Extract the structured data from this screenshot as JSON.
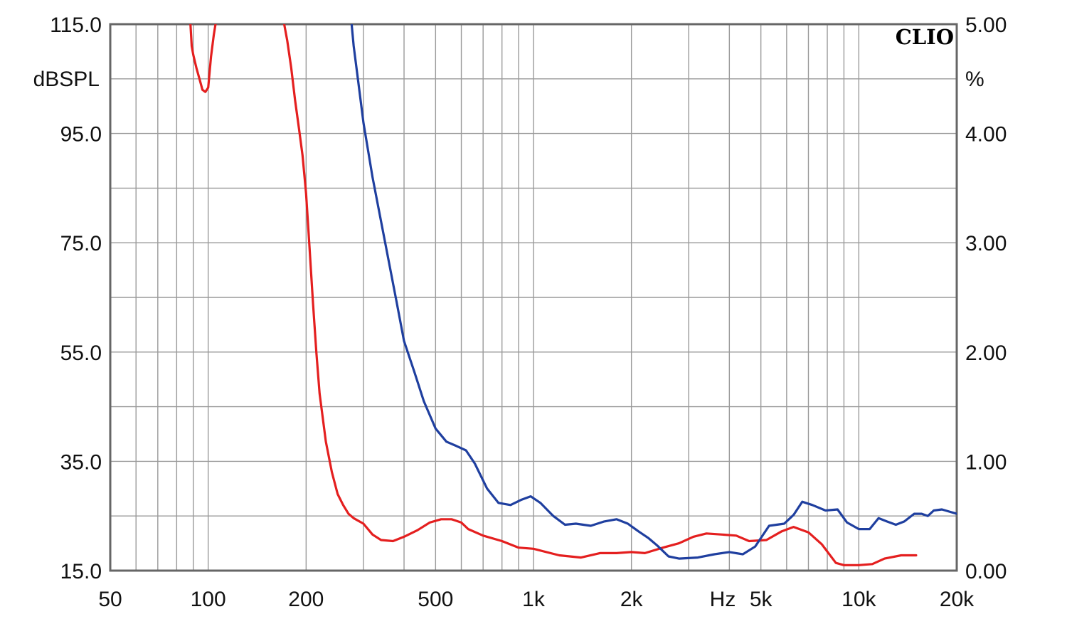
{
  "chart_data": {
    "type": "line",
    "x_scale": "log",
    "xlim": [
      50,
      20000
    ],
    "ylim_left": [
      15,
      115
    ],
    "ylim_right": [
      0,
      5
    ],
    "grid": true,
    "x_ticks": [
      {
        "v": 50,
        "label": "50"
      },
      {
        "v": 100,
        "label": "100"
      },
      {
        "v": 200,
        "label": "200"
      },
      {
        "v": 500,
        "label": "500"
      },
      {
        "v": 1000,
        "label": "1k"
      },
      {
        "v": 2000,
        "label": "2k"
      },
      {
        "v": 5000,
        "label": "5k"
      },
      {
        "v": 10000,
        "label": "10k"
      },
      {
        "v": 20000,
        "label": "20k"
      }
    ],
    "x_unit_label": "Hz",
    "y_left_ticks": [
      {
        "v": 115,
        "label": "115.0"
      },
      {
        "v": 95,
        "label": "95.0"
      },
      {
        "v": 75,
        "label": "75.0"
      },
      {
        "v": 55,
        "label": "55.0"
      },
      {
        "v": 35,
        "label": "35.0"
      },
      {
        "v": 15,
        "label": "15.0"
      }
    ],
    "y_left_unit": "dBSPL",
    "y_right_ticks": [
      {
        "v": 5,
        "label": "5.00"
      },
      {
        "v": 4,
        "label": "4.00"
      },
      {
        "v": 3,
        "label": "3.00"
      },
      {
        "v": 2,
        "label": "2.00"
      },
      {
        "v": 1,
        "label": "1.00"
      },
      {
        "v": 0,
        "label": "0.00"
      }
    ],
    "y_right_unit": "%",
    "brand": "CLIO",
    "series": [
      {
        "color": "#e41f1f",
        "axis": "right",
        "points": [
          [
            88,
            5.05
          ],
          [
            89,
            4.8
          ],
          [
            90,
            4.72
          ],
          [
            92,
            4.6
          ],
          [
            94,
            4.5
          ],
          [
            96,
            4.4
          ],
          [
            98,
            4.38
          ],
          [
            100,
            4.42
          ],
          [
            102,
            4.7
          ],
          [
            104,
            4.9
          ],
          [
            106,
            5.05
          ],
          [
            170,
            5.05
          ],
          [
            175,
            4.85
          ],
          [
            180,
            4.6
          ],
          [
            185,
            4.3
          ],
          [
            190,
            4.05
          ],
          [
            195,
            3.8
          ],
          [
            200,
            3.45
          ],
          [
            205,
            2.95
          ],
          [
            210,
            2.45
          ],
          [
            215,
            2.0
          ],
          [
            220,
            1.62
          ],
          [
            230,
            1.18
          ],
          [
            240,
            0.9
          ],
          [
            250,
            0.7
          ],
          [
            260,
            0.6
          ],
          [
            270,
            0.52
          ],
          [
            280,
            0.48
          ],
          [
            300,
            0.43
          ],
          [
            320,
            0.33
          ],
          [
            340,
            0.28
          ],
          [
            370,
            0.27
          ],
          [
            400,
            0.31
          ],
          [
            440,
            0.37
          ],
          [
            480,
            0.44
          ],
          [
            520,
            0.47
          ],
          [
            560,
            0.47
          ],
          [
            600,
            0.44
          ],
          [
            630,
            0.38
          ],
          [
            700,
            0.32
          ],
          [
            800,
            0.27
          ],
          [
            900,
            0.21
          ],
          [
            1000,
            0.2
          ],
          [
            1200,
            0.14
          ],
          [
            1400,
            0.12
          ],
          [
            1600,
            0.16
          ],
          [
            1800,
            0.16
          ],
          [
            2000,
            0.17
          ],
          [
            2200,
            0.16
          ],
          [
            2500,
            0.21
          ],
          [
            2800,
            0.25
          ],
          [
            3100,
            0.31
          ],
          [
            3400,
            0.34
          ],
          [
            3800,
            0.33
          ],
          [
            4200,
            0.32
          ],
          [
            4600,
            0.27
          ],
          [
            5200,
            0.28
          ],
          [
            5800,
            0.36
          ],
          [
            6300,
            0.4
          ],
          [
            7000,
            0.35
          ],
          [
            7700,
            0.24
          ],
          [
            8500,
            0.07
          ],
          [
            9000,
            0.05
          ],
          [
            10000,
            0.05
          ],
          [
            11000,
            0.06
          ],
          [
            12000,
            0.11
          ],
          [
            13500,
            0.14
          ],
          [
            15000,
            0.14
          ]
        ]
      },
      {
        "color": "#1f3f9f",
        "axis": "right",
        "points": [
          [
            275,
            5.05
          ],
          [
            280,
            4.8
          ],
          [
            290,
            4.45
          ],
          [
            300,
            4.1
          ],
          [
            320,
            3.6
          ],
          [
            350,
            3.0
          ],
          [
            380,
            2.45
          ],
          [
            400,
            2.1
          ],
          [
            430,
            1.82
          ],
          [
            460,
            1.55
          ],
          [
            500,
            1.3
          ],
          [
            540,
            1.18
          ],
          [
            580,
            1.14
          ],
          [
            620,
            1.1
          ],
          [
            660,
            0.98
          ],
          [
            720,
            0.75
          ],
          [
            780,
            0.62
          ],
          [
            850,
            0.6
          ],
          [
            920,
            0.65
          ],
          [
            980,
            0.68
          ],
          [
            1050,
            0.62
          ],
          [
            1150,
            0.5
          ],
          [
            1250,
            0.42
          ],
          [
            1350,
            0.43
          ],
          [
            1500,
            0.41
          ],
          [
            1650,
            0.45
          ],
          [
            1800,
            0.47
          ],
          [
            1950,
            0.43
          ],
          [
            2100,
            0.36
          ],
          [
            2250,
            0.3
          ],
          [
            2400,
            0.23
          ],
          [
            2600,
            0.13
          ],
          [
            2800,
            0.11
          ],
          [
            3200,
            0.12
          ],
          [
            3600,
            0.15
          ],
          [
            4000,
            0.17
          ],
          [
            4400,
            0.15
          ],
          [
            4800,
            0.22
          ],
          [
            5300,
            0.41
          ],
          [
            5900,
            0.43
          ],
          [
            6300,
            0.51
          ],
          [
            6700,
            0.63
          ],
          [
            7200,
            0.6
          ],
          [
            7900,
            0.55
          ],
          [
            8600,
            0.56
          ],
          [
            9200,
            0.44
          ],
          [
            10000,
            0.38
          ],
          [
            10800,
            0.38
          ],
          [
            11500,
            0.48
          ],
          [
            12200,
            0.45
          ],
          [
            13000,
            0.42
          ],
          [
            13800,
            0.45
          ],
          [
            14800,
            0.52
          ],
          [
            15600,
            0.52
          ],
          [
            16300,
            0.5
          ],
          [
            17000,
            0.55
          ],
          [
            18000,
            0.56
          ],
          [
            19000,
            0.54
          ],
          [
            20000,
            0.52
          ]
        ]
      }
    ]
  }
}
